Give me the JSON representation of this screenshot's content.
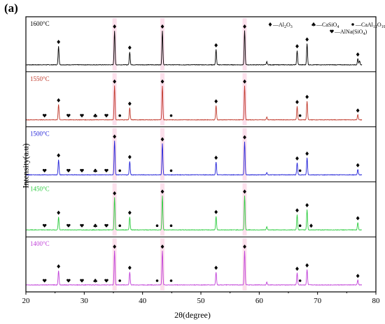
{
  "panel_label": "(a)",
  "colors": {
    "1600": "#000000",
    "1550": "#c0392b",
    "1500": "#2323d8",
    "1450": "#2ecc40",
    "1400": "#c040d8",
    "highlight": "#f9c6dc"
  },
  "legend": [
    {
      "marker": "diamond",
      "label": "—Al",
      "sub": "2",
      "label2": "O",
      "sub2": "3"
    },
    {
      "marker": "club",
      "label": "—CaSiO",
      "sub": "4"
    },
    {
      "marker": "circle",
      "label": "—CaAl",
      "sub": "12",
      "label2": "O",
      "sub2": "19"
    },
    {
      "marker": "heart",
      "label": "—AlNa(SiO",
      "sub": "4",
      "label2": ")"
    }
  ],
  "chart_data": {
    "type": "line",
    "xlabel": "2θ(degree)",
    "ylabel": "Intensity(a.u)",
    "xlim": [
      20,
      80
    ],
    "xticks": [
      20,
      30,
      40,
      50,
      60,
      70,
      80
    ],
    "series": [
      {
        "name": "1600°C",
        "color_key": "1600",
        "peaks": [
          [
            25.6,
            0.55
          ],
          [
            35.2,
            1.0
          ],
          [
            37.8,
            0.38
          ],
          [
            43.4,
            1.0
          ],
          [
            52.6,
            0.45
          ],
          [
            57.5,
            1.0
          ],
          [
            61.3,
            0.09
          ],
          [
            66.5,
            0.42
          ],
          [
            68.2,
            0.62
          ],
          [
            76.9,
            0.18
          ],
          [
            77.2,
            0.12
          ]
        ],
        "markers": [
          [
            25.6,
            "diamond"
          ],
          [
            35.2,
            "diamond"
          ],
          [
            37.8,
            "diamond"
          ],
          [
            43.4,
            "diamond"
          ],
          [
            52.6,
            "diamond"
          ],
          [
            57.5,
            "diamond"
          ],
          [
            66.5,
            "diamond"
          ],
          [
            68.2,
            "diamond"
          ],
          [
            76.9,
            "diamond"
          ]
        ]
      },
      {
        "name": "1550°C",
        "color_key": "1550",
        "peaks": [
          [
            25.6,
            0.45
          ],
          [
            35.2,
            1.0
          ],
          [
            37.8,
            0.35
          ],
          [
            43.4,
            1.0
          ],
          [
            52.6,
            0.42
          ],
          [
            57.5,
            1.0
          ],
          [
            61.3,
            0.08
          ],
          [
            66.5,
            0.4
          ],
          [
            68.2,
            0.55
          ],
          [
            76.9,
            0.15
          ]
        ],
        "markers": [
          [
            23.2,
            "heart"
          ],
          [
            25.6,
            "diamond"
          ],
          [
            27.3,
            "heart"
          ],
          [
            29.6,
            "heart"
          ],
          [
            31.9,
            "club"
          ],
          [
            33.8,
            "heart"
          ],
          [
            35.2,
            "diamond"
          ],
          [
            36.1,
            "circle"
          ],
          [
            37.8,
            "diamond"
          ],
          [
            43.4,
            "diamond"
          ],
          [
            44.9,
            "circle"
          ],
          [
            52.6,
            "diamond"
          ],
          [
            57.5,
            "diamond"
          ],
          [
            66.5,
            "diamond"
          ],
          [
            67.0,
            "circle"
          ],
          [
            68.2,
            "diamond"
          ],
          [
            76.9,
            "diamond"
          ]
        ]
      },
      {
        "name": "1500°C",
        "color_key": "1500",
        "peaks": [
          [
            25.6,
            0.45
          ],
          [
            35.2,
            1.0
          ],
          [
            37.8,
            0.4
          ],
          [
            43.4,
            0.92
          ],
          [
            52.6,
            0.38
          ],
          [
            57.5,
            0.98
          ],
          [
            61.3,
            0.07
          ],
          [
            66.5,
            0.36
          ],
          [
            68.2,
            0.5
          ],
          [
            76.9,
            0.16
          ]
        ],
        "markers": [
          [
            23.2,
            "heart"
          ],
          [
            25.6,
            "diamond"
          ],
          [
            27.3,
            "heart"
          ],
          [
            29.6,
            "heart"
          ],
          [
            31.9,
            "club"
          ],
          [
            33.8,
            "heart"
          ],
          [
            35.2,
            "diamond"
          ],
          [
            36.1,
            "circle"
          ],
          [
            37.8,
            "diamond"
          ],
          [
            43.4,
            "diamond"
          ],
          [
            44.9,
            "circle"
          ],
          [
            52.6,
            "diamond"
          ],
          [
            57.5,
            "diamond"
          ],
          [
            66.5,
            "diamond"
          ],
          [
            67.0,
            "circle"
          ],
          [
            68.2,
            "diamond"
          ],
          [
            76.9,
            "diamond"
          ]
        ]
      },
      {
        "name": "1450°C",
        "color_key": "1450",
        "peaks": [
          [
            25.6,
            0.38
          ],
          [
            35.2,
            0.95
          ],
          [
            37.8,
            0.38
          ],
          [
            43.4,
            1.0
          ],
          [
            52.6,
            0.4
          ],
          [
            57.5,
            1.0
          ],
          [
            61.3,
            0.09
          ],
          [
            66.5,
            0.45
          ],
          [
            68.2,
            0.6
          ],
          [
            76.9,
            0.22
          ]
        ],
        "markers": [
          [
            23.2,
            "heart"
          ],
          [
            25.6,
            "diamond"
          ],
          [
            27.3,
            "heart"
          ],
          [
            29.6,
            "heart"
          ],
          [
            31.9,
            "club"
          ],
          [
            33.8,
            "heart"
          ],
          [
            35.2,
            "diamond"
          ],
          [
            36.1,
            "circle"
          ],
          [
            37.8,
            "diamond"
          ],
          [
            42.5,
            "circle"
          ],
          [
            43.4,
            "diamond"
          ],
          [
            44.9,
            "circle"
          ],
          [
            52.6,
            "diamond"
          ],
          [
            57.5,
            "diamond"
          ],
          [
            66.5,
            "diamond"
          ],
          [
            67.0,
            "circle"
          ],
          [
            68.2,
            "diamond"
          ],
          [
            68.9,
            "diamond"
          ],
          [
            76.9,
            "diamond"
          ]
        ]
      },
      {
        "name": "1400°C",
        "color_key": "1400",
        "peaks": [
          [
            25.6,
            0.42
          ],
          [
            35.2,
            1.0
          ],
          [
            37.8,
            0.38
          ],
          [
            43.4,
            1.0
          ],
          [
            52.6,
            0.38
          ],
          [
            57.5,
            1.0
          ],
          [
            61.3,
            0.08
          ],
          [
            66.5,
            0.35
          ],
          [
            68.2,
            0.45
          ],
          [
            76.9,
            0.14
          ]
        ],
        "markers": [
          [
            23.2,
            "heart"
          ],
          [
            25.6,
            "diamond"
          ],
          [
            27.3,
            "heart"
          ],
          [
            29.6,
            "heart"
          ],
          [
            31.9,
            "club"
          ],
          [
            33.8,
            "heart"
          ],
          [
            35.2,
            "diamond"
          ],
          [
            36.1,
            "circle"
          ],
          [
            37.8,
            "diamond"
          ],
          [
            42.5,
            "circle"
          ],
          [
            43.4,
            "diamond"
          ],
          [
            44.9,
            "circle"
          ],
          [
            52.6,
            "diamond"
          ],
          [
            57.5,
            "diamond"
          ],
          [
            66.5,
            "diamond"
          ],
          [
            67.0,
            "circle"
          ],
          [
            68.2,
            "diamond"
          ],
          [
            76.9,
            "diamond"
          ]
        ]
      }
    ],
    "highlight_bands": [
      35.2,
      43.4,
      57.5
    ],
    "grid": false,
    "legend_position": "top-right"
  }
}
